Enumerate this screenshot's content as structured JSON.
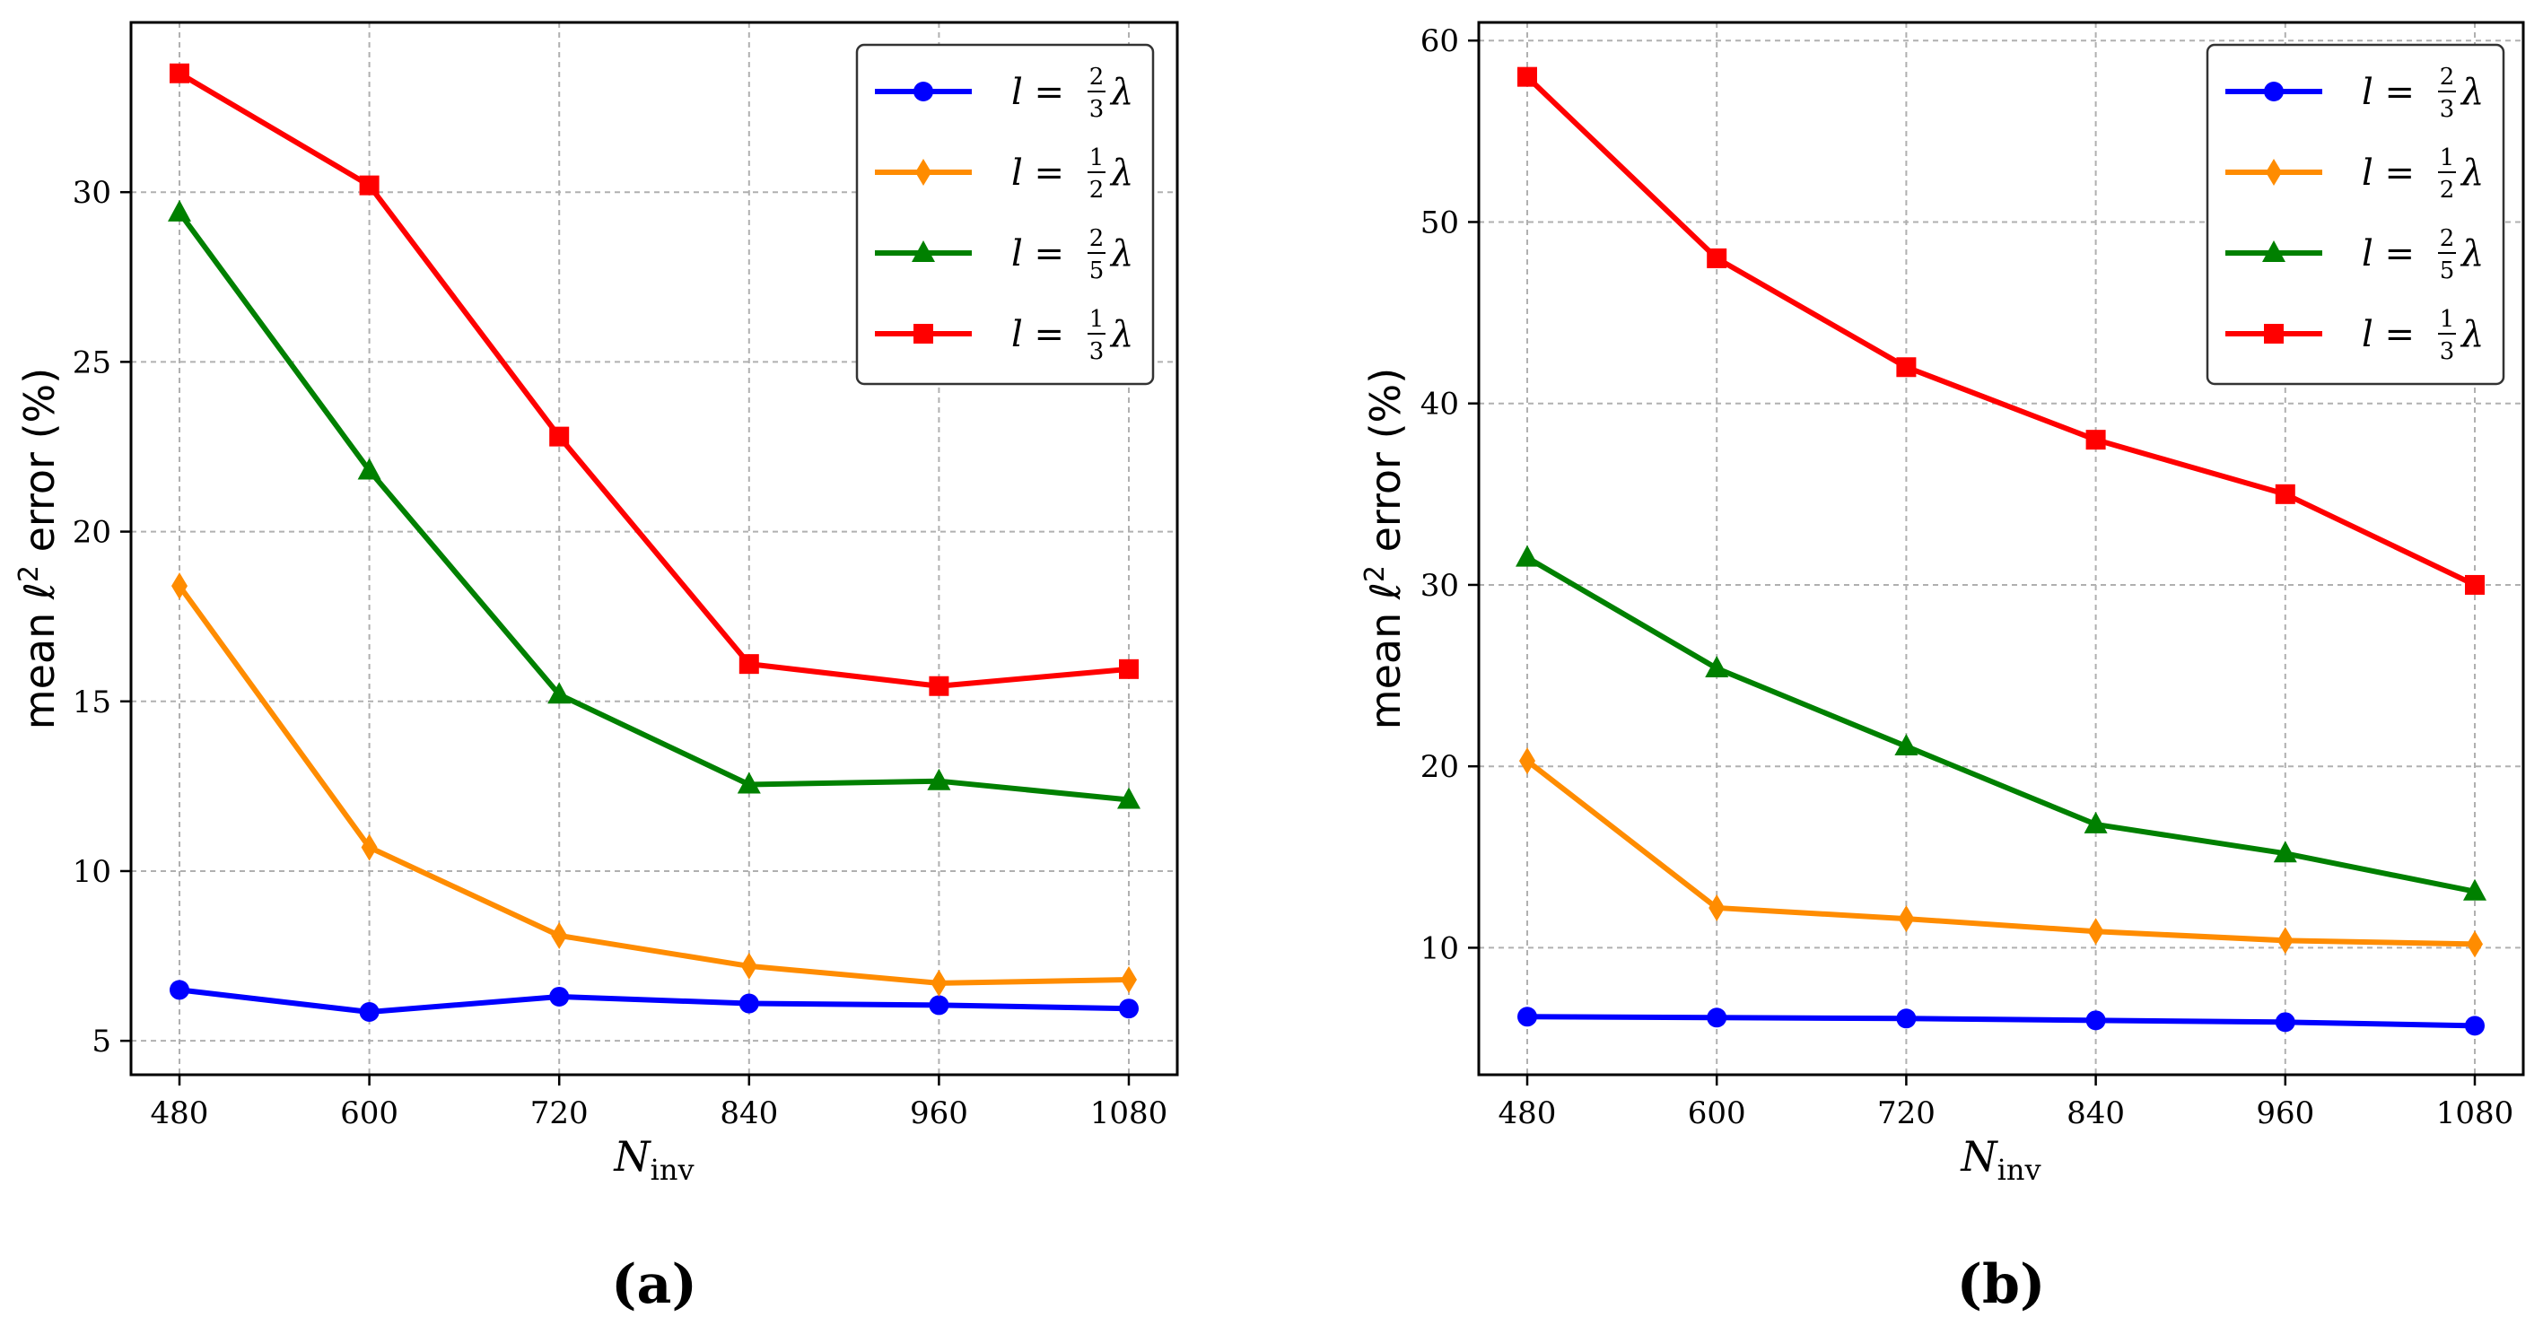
{
  "figure": {
    "subfigure_labels": [
      "(a)",
      "(b)"
    ]
  },
  "chart_data": [
    {
      "type": "line",
      "panel": "(a)",
      "x": [
        480,
        600,
        720,
        840,
        960,
        1080
      ],
      "xlabel": "N_inv",
      "xlabel_main": "N",
      "xlabel_sub": "inv",
      "ylabel": "mean ℓ² error (%)",
      "ylabel_pre": "mean ℓ",
      "ylabel_sup": "2",
      "ylabel_post": " error (%)",
      "ylim": [
        4,
        35
      ],
      "yticks": [
        5,
        10,
        15,
        20,
        25,
        30
      ],
      "grid": true,
      "legend_position": "top-right",
      "series": [
        {
          "name": "l = 2/3 λ",
          "num": "2",
          "den": "3",
          "color": "#0000ff",
          "marker": "circle",
          "values": [
            6.5,
            5.85,
            6.3,
            6.1,
            6.05,
            5.95
          ]
        },
        {
          "name": "l = 1/2 λ",
          "num": "1",
          "den": "2",
          "color": "#ff8c00",
          "marker": "diamond",
          "values": [
            18.4,
            10.7,
            8.1,
            7.2,
            6.7,
            6.8
          ]
        },
        {
          "name": "l = 2/5 λ",
          "num": "2",
          "den": "5",
          "color": "#008000",
          "marker": "triangle",
          "values": [
            29.4,
            21.8,
            15.2,
            12.55,
            12.65,
            12.1
          ]
        },
        {
          "name": "l = 1/3 λ",
          "num": "1",
          "den": "3",
          "color": "#ff0000",
          "marker": "square",
          "values": [
            33.5,
            30.2,
            22.8,
            16.1,
            15.45,
            15.95
          ]
        }
      ]
    },
    {
      "type": "line",
      "panel": "(b)",
      "x": [
        480,
        600,
        720,
        840,
        960,
        1080
      ],
      "xlabel": "N_inv",
      "xlabel_main": "N",
      "xlabel_sub": "inv",
      "ylabel": "mean ℓ² error (%)",
      "ylabel_pre": "mean ℓ",
      "ylabel_sup": "2",
      "ylabel_post": " error (%)",
      "ylim": [
        3,
        61
      ],
      "yticks": [
        10,
        20,
        30,
        40,
        50,
        60
      ],
      "grid": true,
      "legend_position": "top-right",
      "series": [
        {
          "name": "l = 2/3 λ",
          "num": "2",
          "den": "3",
          "color": "#0000ff",
          "marker": "circle",
          "values": [
            6.2,
            6.15,
            6.1,
            6.0,
            5.9,
            5.7
          ]
        },
        {
          "name": "l = 1/2 λ",
          "num": "1",
          "den": "2",
          "color": "#ff8c00",
          "marker": "diamond",
          "values": [
            20.3,
            12.2,
            11.6,
            10.9,
            10.4,
            10.2
          ]
        },
        {
          "name": "l = 2/5 λ",
          "num": "2",
          "den": "5",
          "color": "#008000",
          "marker": "triangle",
          "values": [
            31.5,
            25.4,
            21.1,
            16.8,
            15.2,
            13.1
          ]
        },
        {
          "name": "l = 1/3 λ",
          "num": "1",
          "den": "3",
          "color": "#ff0000",
          "marker": "square",
          "values": [
            58.0,
            48.0,
            42.0,
            38.0,
            35.0,
            30.0
          ]
        }
      ]
    }
  ]
}
